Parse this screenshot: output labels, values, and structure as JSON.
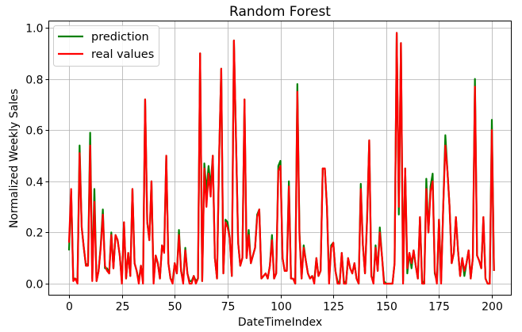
{
  "chart_data": {
    "type": "line",
    "title": "Random Forest",
    "xlabel": "DateTimeIndex",
    "ylabel": "Normalized Weekly Sales",
    "xlim": [
      -5,
      210
    ],
    "ylim": [
      -0.05,
      1.03
    ],
    "grid": true,
    "legend_position": "upper left",
    "x_ticks": [
      0,
      25,
      50,
      75,
      100,
      125,
      150,
      175,
      200
    ],
    "x_tick_labels": [
      "0",
      "25",
      "50",
      "75",
      "100",
      "125",
      "150",
      "175",
      "200"
    ],
    "y_ticks": [
      0.0,
      0.2,
      0.4,
      0.6,
      0.8,
      1.0
    ],
    "y_tick_labels": [
      "0.0",
      "0.2",
      "0.4",
      "0.6",
      "0.8",
      "1.0"
    ],
    "x_start": 0,
    "series": [
      {
        "name": "prediction",
        "color": "#008000",
        "values": [
          0.13,
          0.36,
          0.02,
          0.02,
          0.01,
          0.54,
          0.22,
          0.14,
          0.07,
          0.08,
          0.59,
          0.02,
          0.37,
          0.01,
          0.05,
          0.15,
          0.29,
          0.06,
          0.06,
          0.04,
          0.2,
          0.06,
          0.19,
          0.17,
          0.11,
          0.01,
          0.24,
          0.02,
          0.12,
          0.03,
          0.37,
          0.08,
          0.05,
          0.01,
          0.07,
          0.01,
          0.72,
          0.24,
          0.17,
          0.4,
          0.01,
          0.11,
          0.08,
          0.02,
          0.15,
          0.13,
          0.5,
          0.08,
          0.02,
          0.01,
          0.08,
          0.04,
          0.21,
          0.05,
          0.01,
          0.14,
          0.04,
          0.01,
          0.01,
          0.03,
          0.01,
          0.02,
          0.9,
          0.01,
          0.47,
          0.36,
          0.46,
          0.38,
          0.5,
          0.1,
          0.02,
          0.5,
          0.84,
          0.04,
          0.25,
          0.24,
          0.18,
          0.03,
          0.95,
          0.56,
          0.16,
          0.07,
          0.1,
          0.72,
          0.1,
          0.21,
          0.08,
          0.11,
          0.14,
          0.27,
          0.29,
          0.02,
          0.03,
          0.04,
          0.02,
          0.07,
          0.19,
          0.02,
          0.04,
          0.46,
          0.48,
          0.1,
          0.05,
          0.05,
          0.4,
          0.02,
          0.02,
          0.0,
          0.78,
          0.2,
          0.02,
          0.15,
          0.09,
          0.04,
          0.02,
          0.03,
          0.01,
          0.1,
          0.03,
          0.05,
          0.45,
          0.45,
          0.3,
          0.01,
          0.15,
          0.16,
          0.05,
          0.01,
          0.0,
          0.12,
          0.01,
          0.0,
          0.1,
          0.06,
          0.04,
          0.08,
          0.02,
          0.0,
          0.39,
          0.15,
          0.04,
          0.26,
          0.56,
          0.03,
          0.01,
          0.15,
          0.05,
          0.22,
          0.11,
          0.01,
          0.0,
          0.0,
          0.0,
          0.0,
          0.08,
          0.98,
          0.27,
          0.94,
          0.01,
          0.45,
          0.04,
          0.12,
          0.06,
          0.13,
          0.07,
          0.02,
          0.26,
          0.01,
          0.0,
          0.41,
          0.2,
          0.38,
          0.43,
          0.04,
          0.01,
          0.25,
          0.01,
          0.3,
          0.58,
          0.44,
          0.3,
          0.08,
          0.12,
          0.26,
          0.13,
          0.03,
          0.1,
          0.03,
          0.08,
          0.13,
          0.02,
          0.1,
          0.8,
          0.11,
          0.09,
          0.06,
          0.26,
          0.02,
          0.0,
          0.0,
          0.64,
          0.05
        ]
      },
      {
        "name": "real values",
        "color": "#ff0000",
        "values": [
          0.16,
          0.37,
          0.01,
          0.02,
          0.0,
          0.51,
          0.22,
          0.14,
          0.07,
          0.07,
          0.54,
          0.01,
          0.32,
          0.01,
          0.05,
          0.14,
          0.27,
          0.07,
          0.05,
          0.04,
          0.19,
          0.06,
          0.19,
          0.17,
          0.11,
          0.0,
          0.24,
          0.02,
          0.12,
          0.03,
          0.37,
          0.08,
          0.05,
          0.0,
          0.07,
          0.0,
          0.72,
          0.24,
          0.17,
          0.4,
          0.0,
          0.11,
          0.08,
          0.02,
          0.15,
          0.12,
          0.5,
          0.08,
          0.02,
          0.0,
          0.08,
          0.04,
          0.19,
          0.05,
          0.0,
          0.13,
          0.04,
          0.0,
          0.0,
          0.03,
          0.0,
          0.02,
          0.9,
          0.01,
          0.45,
          0.3,
          0.43,
          0.34,
          0.5,
          0.1,
          0.02,
          0.5,
          0.84,
          0.04,
          0.24,
          0.22,
          0.18,
          0.03,
          0.95,
          0.56,
          0.16,
          0.07,
          0.1,
          0.72,
          0.1,
          0.19,
          0.08,
          0.11,
          0.14,
          0.26,
          0.29,
          0.02,
          0.03,
          0.04,
          0.02,
          0.07,
          0.17,
          0.02,
          0.04,
          0.44,
          0.46,
          0.1,
          0.05,
          0.05,
          0.38,
          0.02,
          0.02,
          0.0,
          0.75,
          0.19,
          0.02,
          0.14,
          0.09,
          0.04,
          0.02,
          0.03,
          0.0,
          0.1,
          0.03,
          0.05,
          0.45,
          0.45,
          0.3,
          0.0,
          0.14,
          0.16,
          0.05,
          0.0,
          0.0,
          0.12,
          0.0,
          0.0,
          0.1,
          0.06,
          0.04,
          0.08,
          0.02,
          0.0,
          0.37,
          0.15,
          0.04,
          0.25,
          0.56,
          0.03,
          0.0,
          0.14,
          0.05,
          0.2,
          0.11,
          0.0,
          0.0,
          0.0,
          0.0,
          0.0,
          0.08,
          0.98,
          0.3,
          0.94,
          0.0,
          0.45,
          0.06,
          0.12,
          0.08,
          0.13,
          0.07,
          0.02,
          0.26,
          0.0,
          0.0,
          0.37,
          0.2,
          0.36,
          0.4,
          0.05,
          0.0,
          0.25,
          0.0,
          0.3,
          0.54,
          0.44,
          0.3,
          0.08,
          0.12,
          0.26,
          0.13,
          0.03,
          0.1,
          0.05,
          0.08,
          0.13,
          0.02,
          0.1,
          0.77,
          0.11,
          0.09,
          0.06,
          0.26,
          0.02,
          0.0,
          0.0,
          0.6,
          0.05
        ]
      }
    ]
  },
  "legend": {
    "items": [
      {
        "label": "prediction",
        "color": "#008000"
      },
      {
        "label": "real values",
        "color": "#ff0000"
      }
    ]
  }
}
